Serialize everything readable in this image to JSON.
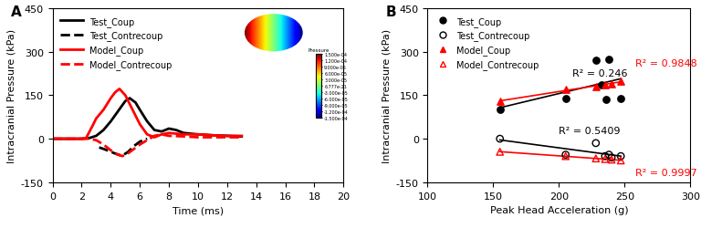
{
  "chart_data": [
    {
      "type": "line",
      "panel": "A",
      "xlabel": "Time (ms)",
      "ylabel": "Intracranial Pressure (kPa)",
      "xlim": [
        0,
        20
      ],
      "xticks": [
        0,
        2,
        4,
        6,
        8,
        10,
        12,
        14,
        16,
        18,
        20
      ],
      "ylim": [
        -150,
        450
      ],
      "yticks": [
        -150,
        0,
        150,
        300,
        450
      ],
      "grid": false,
      "legend": "upper left",
      "series": [
        {
          "name": "Test_Coup",
          "color": "#000000",
          "line_style": "solid",
          "x": [
            0,
            2,
            2.5,
            3,
            3.5,
            4,
            4.5,
            5,
            5.3,
            5.7,
            6,
            6.5,
            7,
            7.5,
            8,
            8.5,
            9,
            10,
            11,
            12,
            13
          ],
          "values": [
            0,
            0,
            2,
            10,
            30,
            60,
            95,
            130,
            140,
            125,
            100,
            60,
            30,
            25,
            35,
            30,
            20,
            15,
            12,
            10,
            8
          ]
        },
        {
          "name": "Test_Contrecoup",
          "color": "#000000",
          "line_style": "dashed",
          "x": [
            3.2,
            3.5,
            4,
            4.5,
            4.8,
            5.2,
            5.6,
            6,
            6.5
          ],
          "values": [
            -30,
            -35,
            -45,
            -55,
            -58,
            -45,
            -25,
            -10,
            0
          ]
        },
        {
          "name": "Model_Coup",
          "color": "#ff0000",
          "line_style": "solid",
          "x": [
            0,
            2,
            2.3,
            2.7,
            3,
            3.5,
            4,
            4.3,
            4.6,
            5,
            5.5,
            6,
            6.5,
            7,
            7.5,
            8,
            9,
            10,
            11,
            12,
            13
          ],
          "values": [
            0,
            0,
            2,
            40,
            70,
            100,
            140,
            160,
            172,
            150,
            100,
            50,
            15,
            5,
            15,
            20,
            15,
            15,
            12,
            10,
            10
          ]
        },
        {
          "name": "Model_Contrecoup",
          "color": "#ff0000",
          "line_style": "dashed",
          "x": [
            0,
            2.5,
            3,
            3.5,
            4,
            4.5,
            4.8,
            5.2,
            5.6,
            6,
            6.5,
            7,
            7.5,
            8,
            9,
            10,
            11,
            12,
            13
          ],
          "values": [
            0,
            0,
            -5,
            -20,
            -40,
            -55,
            -60,
            -50,
            -35,
            -20,
            -5,
            10,
            15,
            10,
            8,
            5,
            5,
            5,
            5
          ]
        }
      ],
      "colorbar": {
        "label": "Pressure",
        "range": [
          -0.00015,
          0.00015
        ],
        "ticks": [
          {
            "value": 0.00015,
            "label": "1.500e-04"
          },
          {
            "value": 0.00012,
            "label": "1.200e-04"
          },
          {
            "value": 9e-05,
            "label": "9.000e-05"
          },
          {
            "value": 6e-05,
            "label": "6.000e-05"
          },
          {
            "value": 3e-05,
            "label": "3.000e-05"
          },
          {
            "value": 6.777e-21,
            "label": "6.777e-21"
          },
          {
            "value": -3e-05,
            "label": "-3.000e-05"
          },
          {
            "value": -6e-05,
            "label": "-6.000e-05"
          },
          {
            "value": -9e-05,
            "label": "-9.000e-05"
          },
          {
            "value": -0.00012,
            "label": "-1.200e-04"
          },
          {
            "value": -0.00015,
            "label": "-1.500e-04"
          }
        ]
      }
    },
    {
      "type": "scatter",
      "panel": "B",
      "xlabel": "Peak Head Acceleration (g)",
      "ylabel": "Intracranial Pressure (kPa)",
      "xlim": [
        100,
        300
      ],
      "xticks": [
        100,
        150,
        200,
        250,
        300
      ],
      "ylim": [
        -150,
        450
      ],
      "yticks": [
        -150,
        0,
        150,
        300,
        450
      ],
      "grid": false,
      "legend": "upper left",
      "series": [
        {
          "name": "Test_Coup",
          "color": "#000000",
          "marker": "circle",
          "annotation": "R² = 0.246",
          "x": [
            155,
            205,
            228,
            238,
            232,
            236,
            247
          ],
          "values": [
            100,
            140,
            270,
            275,
            185,
            135,
            140
          ]
        },
        {
          "name": "Test_Contrecoup",
          "color": "#000000",
          "marker": "open_circle",
          "annotation": "R² = 0.5409",
          "x": [
            155,
            205,
            228,
            235,
            238,
            240,
            247
          ],
          "values": [
            0,
            -55,
            -15,
            -60,
            -55,
            -65,
            -60
          ]
        },
        {
          "name": "Model_Coup",
          "color": "#ff0000",
          "marker": "triangle",
          "annotation": "R² = 0.9848",
          "x": [
            155,
            205,
            228,
            235,
            240,
            247
          ],
          "values": [
            130,
            170,
            180,
            185,
            190,
            200
          ]
        },
        {
          "name": "Model_Contrecoup",
          "color": "#ff0000",
          "marker": "open_triangle",
          "annotation": "R² = 0.9997",
          "x": [
            155,
            205,
            228,
            235,
            240,
            247
          ],
          "values": [
            -45,
            -60,
            -68,
            -70,
            -72,
            -75
          ]
        }
      ]
    }
  ]
}
